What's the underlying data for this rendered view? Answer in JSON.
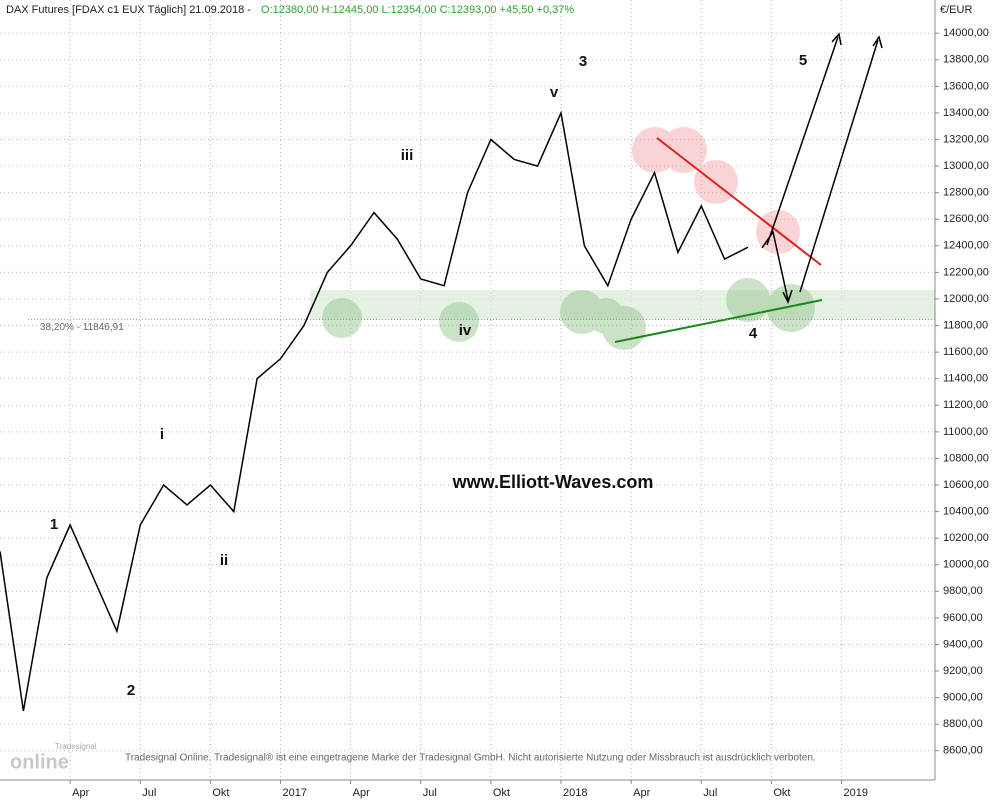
{
  "chart_data": {
    "type": "line",
    "header": {
      "title": "DAX Futures [FDAX c1 EUX  Täglich] 21.09.2018 -",
      "quote": "O:12380,00 H:12445,00 L:12354,00 C:12393,00 +45,50 +0,37%"
    },
    "unit_label": "€/EUR",
    "series": [
      {
        "name": "DAX Futures",
        "color": "#000000",
        "x": [
          "2016-01",
          "2016-02",
          "2016-03",
          "2016-04",
          "2016-05",
          "2016-06",
          "2016-07",
          "2016-08",
          "2016-09",
          "2016-10",
          "2016-11",
          "2016-12",
          "2017-01",
          "2017-02",
          "2017-03",
          "2017-04",
          "2017-05",
          "2017-06",
          "2017-07",
          "2017-08",
          "2017-09",
          "2017-10",
          "2017-11",
          "2017-12",
          "2018-01",
          "2018-02",
          "2018-03",
          "2018-04",
          "2018-05",
          "2018-06",
          "2018-07",
          "2018-08",
          "2018-09"
        ],
        "values": [
          10100,
          8900,
          9900,
          10300,
          9900,
          9500,
          10300,
          10600,
          10450,
          10600,
          10400,
          11400,
          11550,
          11800,
          12200,
          12400,
          12650,
          12450,
          12150,
          12100,
          12800,
          13200,
          13050,
          13000,
          13400,
          12400,
          12100,
          12600,
          12950,
          12350,
          12700,
          12300,
          12390
        ]
      }
    ],
    "xlim": [
      "2016-01",
      "2019-05"
    ],
    "xticks": [
      {
        "value": "2016-04",
        "label": "Apr"
      },
      {
        "value": "2016-07",
        "label": "Jul"
      },
      {
        "value": "2016-10",
        "label": "Okt"
      },
      {
        "value": "2017-01",
        "label": "2017"
      },
      {
        "value": "2017-04",
        "label": "Apr"
      },
      {
        "value": "2017-07",
        "label": "Jul"
      },
      {
        "value": "2017-10",
        "label": "Okt"
      },
      {
        "value": "2018-01",
        "label": "2018"
      },
      {
        "value": "2018-04",
        "label": "Apr"
      },
      {
        "value": "2018-07",
        "label": "Jul"
      },
      {
        "value": "2018-10",
        "label": "Okt"
      },
      {
        "value": "2019-01",
        "label": "2019"
      }
    ],
    "ylim": [
      8380,
      14250
    ],
    "yticks": [
      {
        "value": 8600,
        "label": "8600,00"
      },
      {
        "value": 8800,
        "label": "8800,00"
      },
      {
        "value": 9000,
        "label": "9000,00"
      },
      {
        "value": 9200,
        "label": "9200,00"
      },
      {
        "value": 9400,
        "label": "9400,00"
      },
      {
        "value": 9600,
        "label": "9600,00"
      },
      {
        "value": 9800,
        "label": "9800,00"
      },
      {
        "value": 10000,
        "label": "10000,00"
      },
      {
        "value": 10200,
        "label": "10200,00"
      },
      {
        "value": 10400,
        "label": "10400,00"
      },
      {
        "value": 10600,
        "label": "10600,00"
      },
      {
        "value": 10800,
        "label": "10800,00"
      },
      {
        "value": 11000,
        "label": "11000,00"
      },
      {
        "value": 11200,
        "label": "11200,00"
      },
      {
        "value": 11400,
        "label": "11400,00"
      },
      {
        "value": 11600,
        "label": "11600,00"
      },
      {
        "value": 11800,
        "label": "11800,00"
      },
      {
        "value": 12000,
        "label": "12000,00"
      },
      {
        "value": 12200,
        "label": "12200,00"
      },
      {
        "value": 12400,
        "label": "12400,00"
      },
      {
        "value": 12600,
        "label": "12600,00"
      },
      {
        "value": 12800,
        "label": "12800,00"
      },
      {
        "value": 13000,
        "label": "13000,00"
      },
      {
        "value": 13200,
        "label": "13200,00"
      },
      {
        "value": 13400,
        "label": "13400,00"
      },
      {
        "value": 13600,
        "label": "13600,00"
      },
      {
        "value": 13800,
        "label": "13800,00"
      },
      {
        "value": 14000,
        "label": "14000,00"
      }
    ],
    "grid": true,
    "fib_level": 11846.91,
    "fib_label": "38,20% - 11846,91",
    "annotations": [
      {
        "text": "1"
      },
      {
        "text": "2"
      },
      {
        "text": "i"
      },
      {
        "text": "ii"
      },
      {
        "text": "iii"
      },
      {
        "text": "iv"
      },
      {
        "text": "v"
      },
      {
        "text": "3"
      },
      {
        "text": "4"
      },
      {
        "text": "5"
      }
    ],
    "website": "www.Elliott-Waves.com",
    "logo": {
      "small": "Tradesignal",
      "big": "online"
    },
    "disclaimer": "Tradesignal Online. Tradesignal® ist eine eingetragene Marke der Tradesignal GmbH. Nicht autorisierte Nutzung oder Missbrauch ist ausdrücklich verboten."
  }
}
